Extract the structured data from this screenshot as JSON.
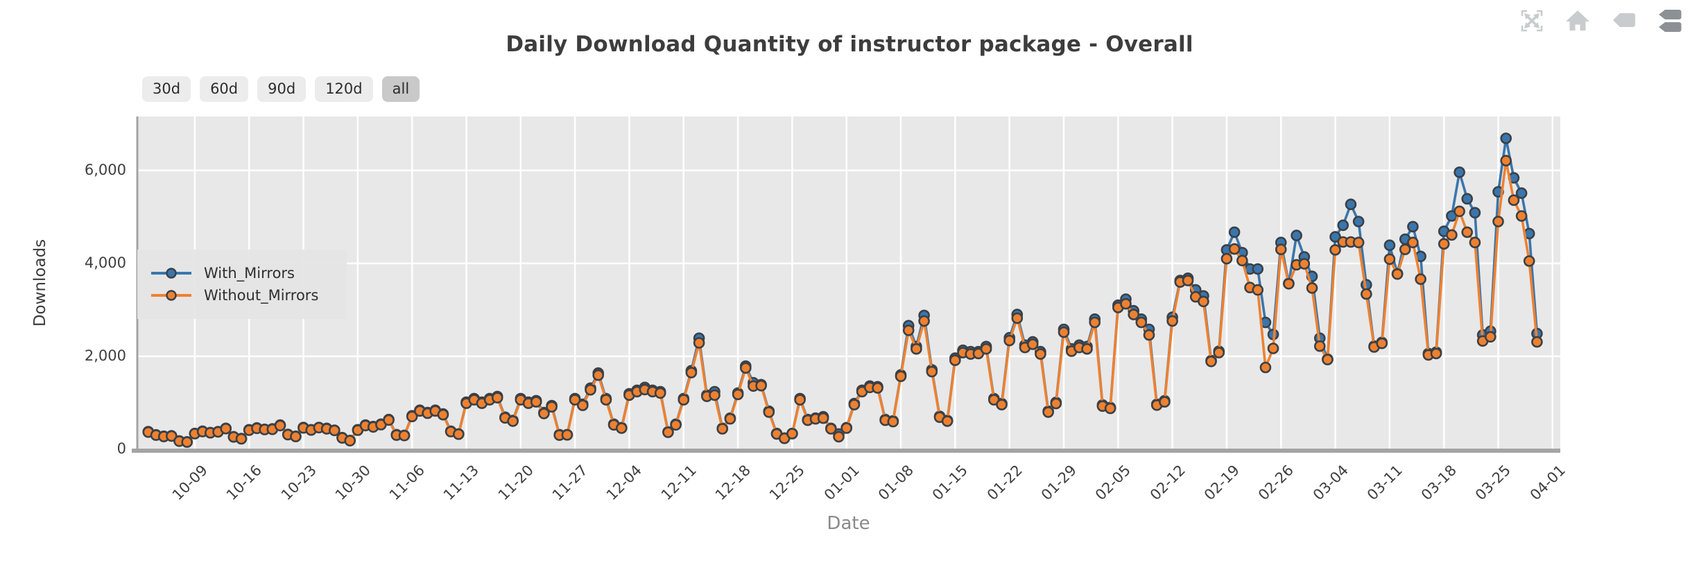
{
  "header": {
    "toolbar_icons": [
      {
        "name": "pan-tool-icon",
        "active": false
      },
      {
        "name": "reset-home-icon",
        "active": false
      },
      {
        "name": "hover-tag-icon",
        "active": false
      },
      {
        "name": "hover-tags-icon",
        "active": true
      }
    ]
  },
  "range_buttons": {
    "options": [
      {
        "label": "30d",
        "active": false
      },
      {
        "label": "60d",
        "active": false
      },
      {
        "label": "90d",
        "active": false
      },
      {
        "label": "120d",
        "active": false
      },
      {
        "label": "all",
        "active": true
      }
    ]
  },
  "colors": {
    "plot_bg": "#e8e8e8",
    "grid": "#ffffff",
    "axis_line": "#a4a4a4",
    "marker_edge": "#3a4046",
    "icon_light": "#c8cccf",
    "icon_dark": "#8c9195",
    "button_bg": "#ececec",
    "button_active_bg": "#c9c9c9",
    "legend_bg": "#e4e4e4"
  },
  "chart_data": {
    "type": "line",
    "title": "Daily Download Quantity of instructor package - Overall",
    "xlabel": "Date",
    "ylabel": "Downloads",
    "grid": true,
    "marker": "circle",
    "legend_position": "upper left",
    "ylim": [
      0,
      7160
    ],
    "y_ticks": [
      0,
      2000,
      4000,
      6000
    ],
    "y_tick_labels": [
      "0",
      "2,000",
      "4,000",
      "6,000"
    ],
    "x_tick_first_index": 6,
    "x_tick_step": 7,
    "x_tick_labels": [
      "10-09",
      "10-16",
      "10-23",
      "10-30",
      "11-06",
      "11-13",
      "11-20",
      "11-27",
      "12-04",
      "12-11",
      "12-18",
      "12-25",
      "01-01",
      "01-08",
      "01-15",
      "01-22",
      "01-29",
      "02-05",
      "02-12",
      "02-19",
      "02-26",
      "03-04",
      "03-11",
      "03-18",
      "03-25",
      "04-01"
    ],
    "categories": [
      "10-03",
      "10-04",
      "10-05",
      "10-06",
      "10-07",
      "10-08",
      "10-09",
      "10-10",
      "10-11",
      "10-12",
      "10-13",
      "10-14",
      "10-15",
      "10-16",
      "10-17",
      "10-18",
      "10-19",
      "10-20",
      "10-21",
      "10-22",
      "10-23",
      "10-24",
      "10-25",
      "10-26",
      "10-27",
      "10-28",
      "10-29",
      "10-30",
      "10-31",
      "11-01",
      "11-02",
      "11-03",
      "11-04",
      "11-05",
      "11-06",
      "11-07",
      "11-08",
      "11-09",
      "11-10",
      "11-11",
      "11-12",
      "11-13",
      "11-14",
      "11-15",
      "11-16",
      "11-17",
      "11-18",
      "11-19",
      "11-20",
      "11-21",
      "11-22",
      "11-23",
      "11-24",
      "11-25",
      "11-26",
      "11-27",
      "11-28",
      "11-29",
      "11-30",
      "12-01",
      "12-02",
      "12-03",
      "12-04",
      "12-05",
      "12-06",
      "12-07",
      "12-08",
      "12-09",
      "12-10",
      "12-11",
      "12-12",
      "12-13",
      "12-14",
      "12-15",
      "12-16",
      "12-17",
      "12-18",
      "12-19",
      "12-20",
      "12-21",
      "12-22",
      "12-23",
      "12-24",
      "12-25",
      "12-26",
      "12-27",
      "12-28",
      "12-29",
      "12-30",
      "12-31",
      "01-01",
      "01-02",
      "01-03",
      "01-04",
      "01-05",
      "01-06",
      "01-07",
      "01-08",
      "01-09",
      "01-10",
      "01-11",
      "01-12",
      "01-13",
      "01-14",
      "01-15",
      "01-16",
      "01-17",
      "01-18",
      "01-19",
      "01-20",
      "01-21",
      "01-22",
      "01-23",
      "01-24",
      "01-25",
      "01-26",
      "01-27",
      "01-28",
      "01-29",
      "01-30",
      "01-31",
      "02-01",
      "02-02",
      "02-03",
      "02-04",
      "02-05",
      "02-06",
      "02-07",
      "02-08",
      "02-09",
      "02-10",
      "02-11",
      "02-12",
      "02-13",
      "02-14",
      "02-15",
      "02-16",
      "02-17",
      "02-18",
      "02-19",
      "02-20",
      "02-21",
      "02-22",
      "02-23",
      "02-24",
      "02-25",
      "02-26",
      "02-27",
      "02-28",
      "02-29",
      "03-01",
      "03-02",
      "03-03",
      "03-04",
      "03-05",
      "03-06",
      "03-07",
      "03-08",
      "03-09",
      "03-10",
      "03-11",
      "03-12",
      "03-13",
      "03-14",
      "03-15",
      "03-16",
      "03-17",
      "03-18",
      "03-19",
      "03-20",
      "03-21",
      "03-22",
      "03-23",
      "03-24",
      "03-25",
      "03-26",
      "03-27",
      "03-28",
      "03-29",
      "03-30"
    ],
    "series": [
      {
        "name": "With_Mirrors",
        "color": "#3a76ad",
        "values": [
          380,
          310,
          280,
          290,
          180,
          160,
          340,
          390,
          360,
          380,
          450,
          270,
          230,
          420,
          460,
          430,
          440,
          520,
          320,
          280,
          470,
          420,
          470,
          450,
          410,
          250,
          190,
          420,
          520,
          490,
          540,
          640,
          315,
          300,
          720,
          840,
          790,
          840,
          760,
          390,
          330,
          1015,
          1090,
          1015,
          1090,
          1135,
          690,
          620,
          1090,
          1015,
          1045,
          790,
          940,
          315,
          315,
          1090,
          970,
          1315,
          1640,
          1090,
          540,
          465,
          1195,
          1270,
          1330,
          1270,
          1240,
          375,
          540,
          1090,
          1690,
          2390,
          1165,
          1240,
          450,
          670,
          1210,
          1790,
          1430,
          1390,
          820,
          340,
          240,
          340,
          1090,
          640,
          670,
          700,
          450,
          330,
          465,
          985,
          1270,
          1360,
          1345,
          640,
          610,
          1600,
          2660,
          2210,
          2880,
          1710,
          710,
          620,
          1960,
          2130,
          2100,
          2100,
          2210,
          1090,
          985,
          2400,
          2900,
          2240,
          2310,
          2100,
          820,
          1010,
          2580,
          2160,
          2240,
          2210,
          2800,
          955,
          900,
          3100,
          3230,
          2980,
          2800,
          2580,
          970,
          1045,
          2840,
          3630,
          3680,
          3430,
          3300,
          1910,
          2110,
          4290,
          4670,
          4230,
          3880,
          3880,
          2730,
          2470,
          4450,
          3570,
          4600,
          4140,
          3720,
          2390,
          1940,
          4570,
          4820,
          5270,
          4900,
          3540,
          2220,
          2300,
          4390,
          3780,
          4520,
          4790,
          4150,
          2060,
          2090,
          4690,
          5020,
          5960,
          5390,
          5090,
          2460,
          2540,
          5540,
          6690,
          5840,
          5510,
          4640,
          2490
        ]
      },
      {
        "name": "Without_Mirrors",
        "color": "#ee8130",
        "values": [
          370,
          305,
          275,
          285,
          175,
          155,
          335,
          380,
          355,
          375,
          445,
          265,
          225,
          410,
          450,
          425,
          430,
          510,
          315,
          275,
          460,
          415,
          465,
          440,
          405,
          245,
          185,
          410,
          510,
          480,
          530,
          630,
          305,
          295,
          705,
          825,
          775,
          825,
          745,
          380,
          325,
          990,
          1065,
          990,
          1065,
          1110,
          675,
          605,
          1065,
          990,
          1020,
          770,
          915,
          305,
          310,
          1065,
          945,
          1280,
          1595,
          1065,
          525,
          455,
          1165,
          1240,
          1285,
          1240,
          1210,
          365,
          525,
          1065,
          1650,
          2290,
          1140,
          1165,
          440,
          655,
          1180,
          1750,
          1360,
          1370,
          800,
          330,
          235,
          335,
          1065,
          625,
          655,
          670,
          440,
          270,
          455,
          960,
          1240,
          1330,
          1320,
          625,
          595,
          1570,
          2560,
          2160,
          2760,
          1670,
          690,
          605,
          1915,
          2080,
          2050,
          2060,
          2160,
          1065,
          960,
          2340,
          2820,
          2190,
          2260,
          2050,
          800,
          985,
          2520,
          2110,
          2190,
          2160,
          2730,
          930,
          880,
          3050,
          3130,
          2900,
          2730,
          2460,
          950,
          1020,
          2760,
          3600,
          3630,
          3280,
          3180,
          1890,
          2080,
          4100,
          4310,
          4060,
          3480,
          3430,
          1760,
          2170,
          4300,
          3560,
          3970,
          3990,
          3470,
          2220,
          1930,
          4290,
          4460,
          4460,
          4450,
          3340,
          2200,
          2280,
          4090,
          3770,
          4300,
          4450,
          3660,
          2030,
          2060,
          4420,
          4610,
          5120,
          4670,
          4450,
          2330,
          2420,
          4900,
          6210,
          5360,
          5020,
          4050,
          2310
        ]
      }
    ]
  }
}
